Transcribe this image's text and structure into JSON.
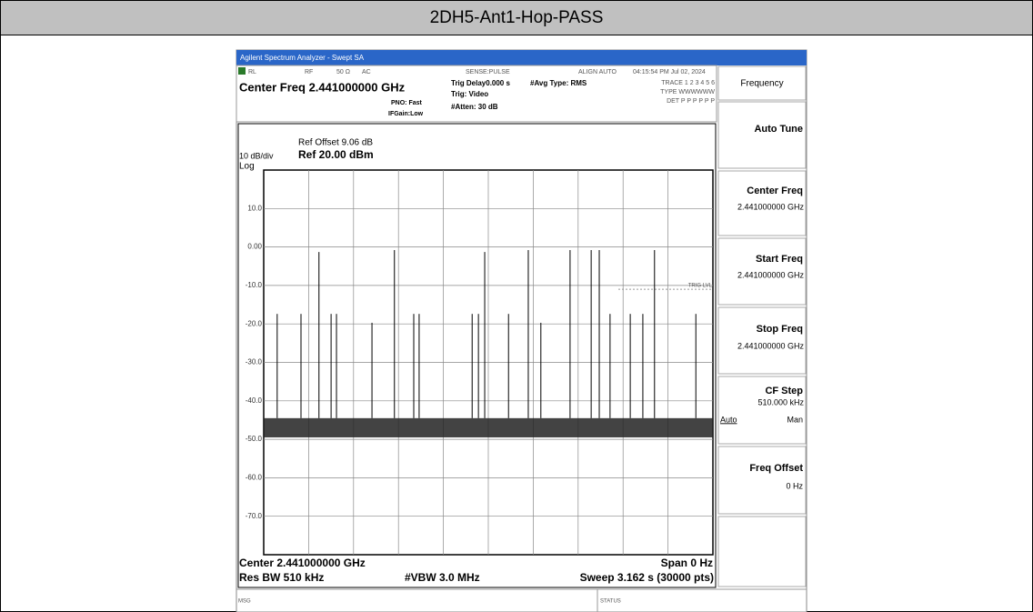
{
  "page": {
    "title": "2DH5-Ant1-Hop-PASS"
  },
  "analyzer": {
    "window_title": "Agilent Spectrum Analyzer - Swept SA",
    "status_row": [
      "RL",
      "RF",
      "50 Ω",
      "AC",
      "SENSE:PULSE",
      "ALIGN AUTO",
      "04:15:54 PM Jul 02, 2024"
    ],
    "center_freq": "Center Freq 2.441000000 GHz",
    "pno": "PNO: Fast",
    "ifgain": "IFGain:Low",
    "trig_delay": "Trig Delay0.000 s",
    "trig": "Trig: Video",
    "atten": "#Atten: 30 dB",
    "avg_type": "#Avg Type: RMS",
    "trace": "TRACE 1 2 3 4 5 6",
    "trace_type": "TYPE WWWWWW",
    "det": "DET P P P P P P",
    "ref_offset": "Ref Offset 9.06 dB",
    "scale": "10 dB/div",
    "ref_level": "Ref 20.00 dBm",
    "log": "Log",
    "trig_lvl": "TRIG LVL",
    "plot": {
      "type": "spikes",
      "ylim": [
        -80,
        20
      ],
      "xlim": [
        0,
        10
      ],
      "yticks": [
        {
          "value": 10,
          "label": "10.0"
        },
        {
          "value": 0,
          "label": "0.00"
        },
        {
          "value": -10,
          "label": "-10.0"
        },
        {
          "value": -20,
          "label": "-20.0"
        },
        {
          "value": -30,
          "label": "-30.0"
        },
        {
          "value": -40,
          "label": "-40.0"
        },
        {
          "value": -50,
          "label": "-50.0"
        },
        {
          "value": -60,
          "label": "-60.0"
        },
        {
          "value": -70,
          "label": "-70.0"
        }
      ],
      "x": [
        0.3,
        0.83,
        1.23,
        1.5,
        1.62,
        2.41,
        2.91,
        3.34,
        3.46,
        4.64,
        4.78,
        4.92,
        5.45,
        5.89,
        6.17,
        6.82,
        7.29,
        7.47,
        7.71,
        8.16,
        8.44,
        8.7,
        9.62
      ],
      "values": [
        -17.4,
        -17.4,
        -1.3,
        -17.4,
        -17.4,
        -19.7,
        -0.8,
        -17.4,
        -17.4,
        -17.4,
        -17.4,
        -1.3,
        -17.4,
        -0.8,
        -19.7,
        -0.8,
        -0.8,
        -0.8,
        -17.4,
        -17.4,
        -17.4,
        -0.8,
        -17.4
      ],
      "color": "#000000"
    },
    "center": "Center 2.441000000 GHz",
    "span": "Span 0 Hz",
    "res_bw": "Res BW 510 kHz",
    "vbw": "#VBW 3.0 MHz",
    "sweep": "Sweep 3.162 s (30000 pts)",
    "msg": "MSG",
    "status": "STATUS",
    "softkeys": {
      "menu": "Frequency",
      "auto_tune": "Auto Tune",
      "center_freq": {
        "label": "Center Freq",
        "value": "2.441000000 GHz"
      },
      "start_freq": {
        "label": "Start Freq",
        "value": "2.441000000 GHz"
      },
      "stop_freq": {
        "label": "Stop Freq",
        "value": "2.441000000 GHz"
      },
      "cf_step": {
        "label": "CF Step",
        "value": "510.000 kHz",
        "auto": "Auto",
        "man": "Man"
      },
      "freq_offset": {
        "label": "Freq Offset",
        "value": "0 Hz"
      }
    }
  }
}
